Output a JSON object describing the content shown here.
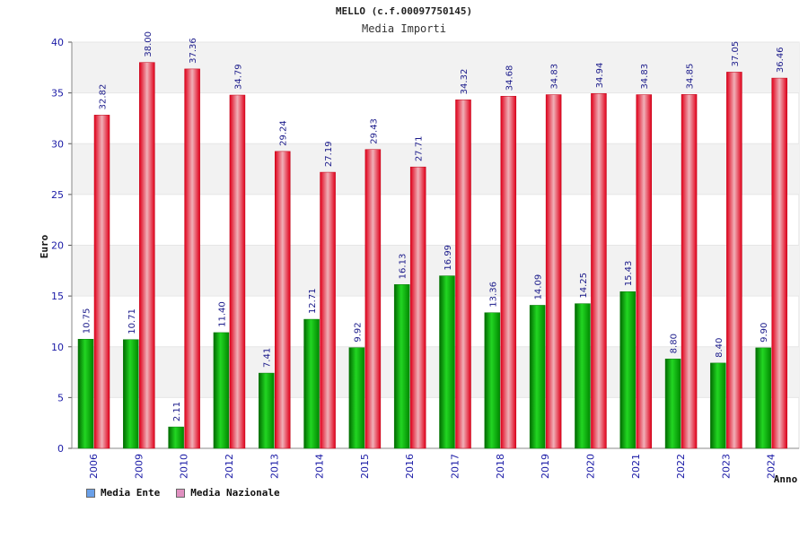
{
  "header": {
    "title": "MELLO (c.f.00097750145)",
    "subtitle": "Media Importi"
  },
  "legend": {
    "ente": "Media Ente",
    "nazionale": "Media Nazionale"
  },
  "colors": {
    "ente_swatch": "#6aa0e8",
    "nazionale_swatch": "#e090c0",
    "ente_bar": "#10b010",
    "nazionale_bar": "#e41b28",
    "band": "#f2f2f2"
  },
  "chart_data": {
    "type": "bar",
    "ylabel": "Euro",
    "xlabel": "Anno",
    "ylim": [
      0,
      40
    ],
    "yticks": [
      0,
      5,
      10,
      15,
      20,
      25,
      30,
      35,
      40
    ],
    "grid": true,
    "legend_position": "bottom-left",
    "categories": [
      "2006",
      "2009",
      "2010",
      "2012",
      "2013",
      "2014",
      "2015",
      "2016",
      "2017",
      "2018",
      "2019",
      "2020",
      "2021",
      "2022",
      "2023",
      "2024"
    ],
    "series": [
      {
        "name": "Media Ente",
        "values": [
          10.75,
          10.71,
          2.11,
          11.4,
          7.41,
          12.71,
          9.92,
          16.13,
          16.99,
          13.36,
          14.09,
          14.25,
          15.43,
          8.8,
          8.4,
          9.9
        ],
        "labels": [
          "10.75",
          "10.71",
          "2.11",
          "11.40",
          "7.41",
          "12.71",
          "9.92",
          "16.13",
          "16.99",
          "13.36",
          "14.09",
          "14.25",
          "15.43",
          "8.80",
          "8.40",
          "9.90"
        ]
      },
      {
        "name": "Media Nazionale",
        "values": [
          32.82,
          38.0,
          37.36,
          34.79,
          29.24,
          27.19,
          29.43,
          27.71,
          34.32,
          34.68,
          34.83,
          34.94,
          34.83,
          34.85,
          37.05,
          36.46
        ],
        "labels": [
          "32.82",
          "38.00",
          "37.36",
          "34.79",
          "29.24",
          "27.19",
          "29.43",
          "27.71",
          "34.32",
          "34.68",
          "34.83",
          "34.94",
          "34.83",
          "34.85",
          "37.05",
          "36.46"
        ]
      }
    ]
  }
}
